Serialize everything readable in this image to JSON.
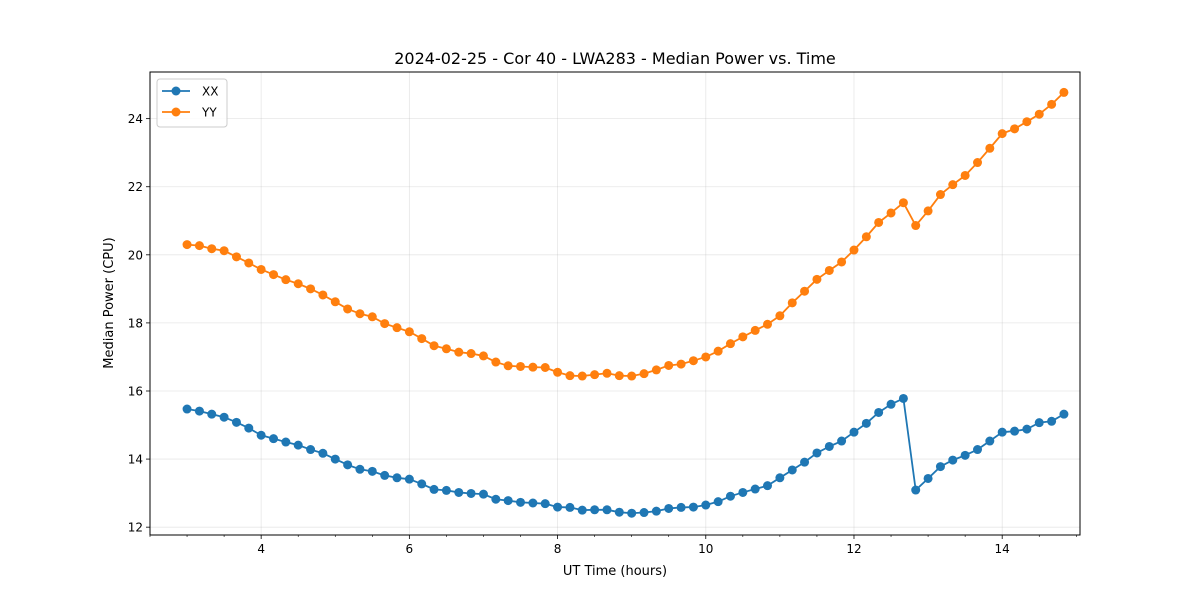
{
  "chart_data": {
    "type": "line",
    "title": "2024-02-25 - Cor 40 - LWA283 - Median Power vs. Time",
    "xlabel": "UT Time (hours)",
    "ylabel": "Median Power (CPU)",
    "xlim": [
      2.5,
      15.05
    ],
    "ylim": [
      11.77,
      25.37
    ],
    "xticks": [
      4,
      6,
      8,
      10,
      12,
      14
    ],
    "xtick_labels": [
      "4",
      "6",
      "8",
      "10",
      "12",
      "14"
    ],
    "yticks": [
      12,
      14,
      16,
      18,
      20,
      22,
      24
    ],
    "ytick_labels": [
      "12",
      "14",
      "16",
      "18",
      "20",
      "22",
      "24"
    ],
    "grid": true,
    "legend_position": "top-left",
    "x": [
      3.0,
      3.167,
      3.333,
      3.5,
      3.667,
      3.833,
      4.0,
      4.167,
      4.333,
      4.5,
      4.667,
      4.833,
      5.0,
      5.167,
      5.333,
      5.5,
      5.667,
      5.833,
      6.0,
      6.167,
      6.333,
      6.5,
      6.667,
      6.833,
      7.0,
      7.167,
      7.333,
      7.5,
      7.667,
      7.833,
      8.0,
      8.167,
      8.333,
      8.5,
      8.667,
      8.833,
      9.0,
      9.167,
      9.333,
      9.5,
      9.667,
      9.833,
      10.0,
      10.167,
      10.333,
      10.5,
      10.667,
      10.833,
      11.0,
      11.167,
      11.333,
      11.5,
      11.667,
      11.833,
      12.0,
      12.167,
      12.333,
      12.5,
      12.667,
      12.833,
      13.0,
      13.167,
      13.333,
      13.5,
      13.667,
      13.833,
      14.0,
      14.167,
      14.333,
      14.5,
      14.667,
      14.833
    ],
    "series": [
      {
        "name": "XX",
        "color": "#1f77b4",
        "values": [
          15.47,
          15.41,
          15.32,
          15.23,
          15.08,
          14.91,
          14.7,
          14.6,
          14.5,
          14.41,
          14.28,
          14.17,
          14.0,
          13.83,
          13.7,
          13.64,
          13.52,
          13.45,
          13.41,
          13.27,
          13.11,
          13.08,
          13.02,
          12.99,
          12.97,
          12.82,
          12.78,
          12.73,
          12.71,
          12.69,
          12.59,
          12.58,
          12.5,
          12.51,
          12.51,
          12.44,
          12.41,
          12.43,
          12.47,
          12.55,
          12.58,
          12.59,
          12.65,
          12.75,
          12.91,
          13.02,
          13.12,
          13.22,
          13.45,
          13.68,
          13.91,
          14.18,
          14.37,
          14.53,
          14.79,
          15.05,
          15.37,
          15.61,
          15.78,
          13.09,
          13.43,
          13.78,
          13.97,
          14.11,
          14.28,
          14.53,
          14.79,
          14.82,
          14.88,
          15.07,
          15.11,
          15.32
        ]
      },
      {
        "name": "YY",
        "color": "#ff7f0e",
        "values": [
          20.3,
          20.27,
          20.18,
          20.12,
          19.94,
          19.76,
          19.57,
          19.42,
          19.27,
          19.15,
          19.0,
          18.82,
          18.62,
          18.41,
          18.27,
          18.18,
          17.98,
          17.86,
          17.74,
          17.54,
          17.33,
          17.24,
          17.14,
          17.1,
          17.03,
          16.85,
          16.74,
          16.72,
          16.7,
          16.69,
          16.55,
          16.45,
          16.44,
          16.48,
          16.52,
          16.45,
          16.44,
          16.51,
          16.62,
          16.75,
          16.79,
          16.89,
          17.0,
          17.17,
          17.39,
          17.59,
          17.78,
          17.96,
          18.21,
          18.59,
          18.93,
          19.28,
          19.54,
          19.79,
          20.14,
          20.53,
          20.95,
          21.23,
          21.53,
          20.86,
          21.29,
          21.77,
          22.06,
          22.33,
          22.71,
          23.13,
          23.56,
          23.7,
          23.91,
          24.13,
          24.42,
          24.77
        ]
      }
    ]
  }
}
